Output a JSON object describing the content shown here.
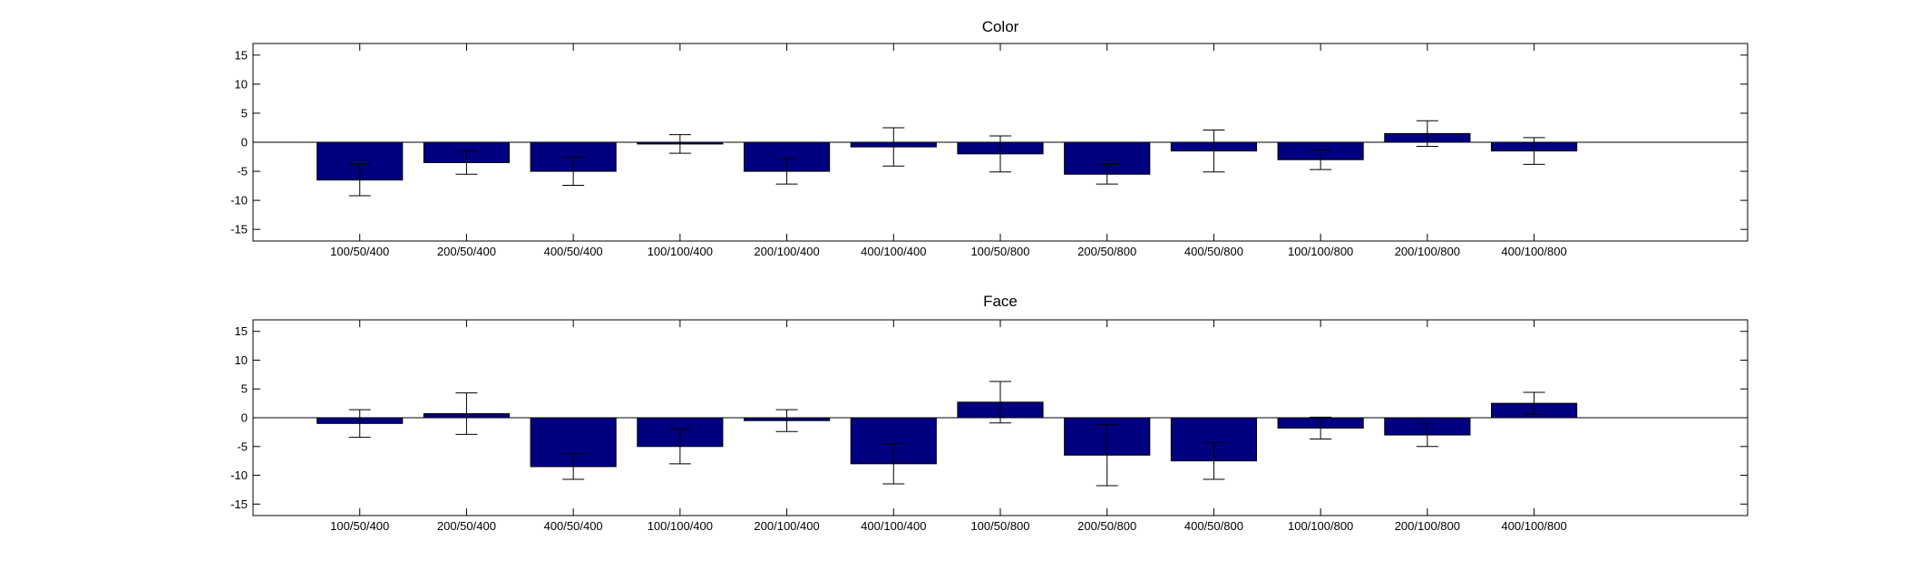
{
  "chart_data": [
    {
      "type": "bar",
      "title": "Color",
      "xlabel": "",
      "ylabel": "",
      "ylim": [
        -17,
        17
      ],
      "yticks": [
        15,
        10,
        5,
        0,
        -5,
        -10,
        -15
      ],
      "xlim": [
        0,
        14
      ],
      "grid": false,
      "bar_color": "#000080",
      "categories": [
        "100/50/400",
        "200/50/400",
        "400/50/400",
        "100/100/400",
        "200/100/400",
        "400/100/400",
        "100/50/800",
        "200/50/800",
        "400/50/800",
        "100/100/800",
        "200/100/800",
        "400/100/800"
      ],
      "values": [
        -6.5,
        -3.5,
        -5.0,
        -0.3,
        -5.0,
        -0.8,
        -2.0,
        -5.5,
        -1.5,
        -3.0,
        1.5,
        -1.5
      ],
      "error": [
        2.7,
        2.0,
        2.4,
        1.6,
        2.2,
        3.3,
        3.1,
        1.7,
        3.6,
        1.7,
        2.2,
        2.3
      ]
    },
    {
      "type": "bar",
      "title": "Face",
      "xlabel": "",
      "ylabel": "",
      "ylim": [
        -17,
        17
      ],
      "yticks": [
        15,
        10,
        5,
        0,
        -5,
        -10,
        -15
      ],
      "xlim": [
        0,
        14
      ],
      "grid": false,
      "bar_color": "#000080",
      "categories": [
        "100/50/400",
        "200/50/400",
        "400/50/400",
        "100/100/400",
        "200/100/400",
        "400/100/400",
        "100/50/800",
        "200/50/800",
        "400/50/800",
        "100/100/800",
        "200/100/800",
        "400/100/800"
      ],
      "values": [
        -1.0,
        0.7,
        -8.5,
        -5.0,
        -0.5,
        -8.0,
        2.7,
        -6.5,
        -7.5,
        -1.8,
        -3.0,
        2.5
      ],
      "error": [
        2.4,
        3.6,
        2.2,
        3.0,
        1.9,
        3.5,
        3.6,
        5.3,
        3.2,
        1.9,
        2.0,
        1.9
      ]
    }
  ]
}
